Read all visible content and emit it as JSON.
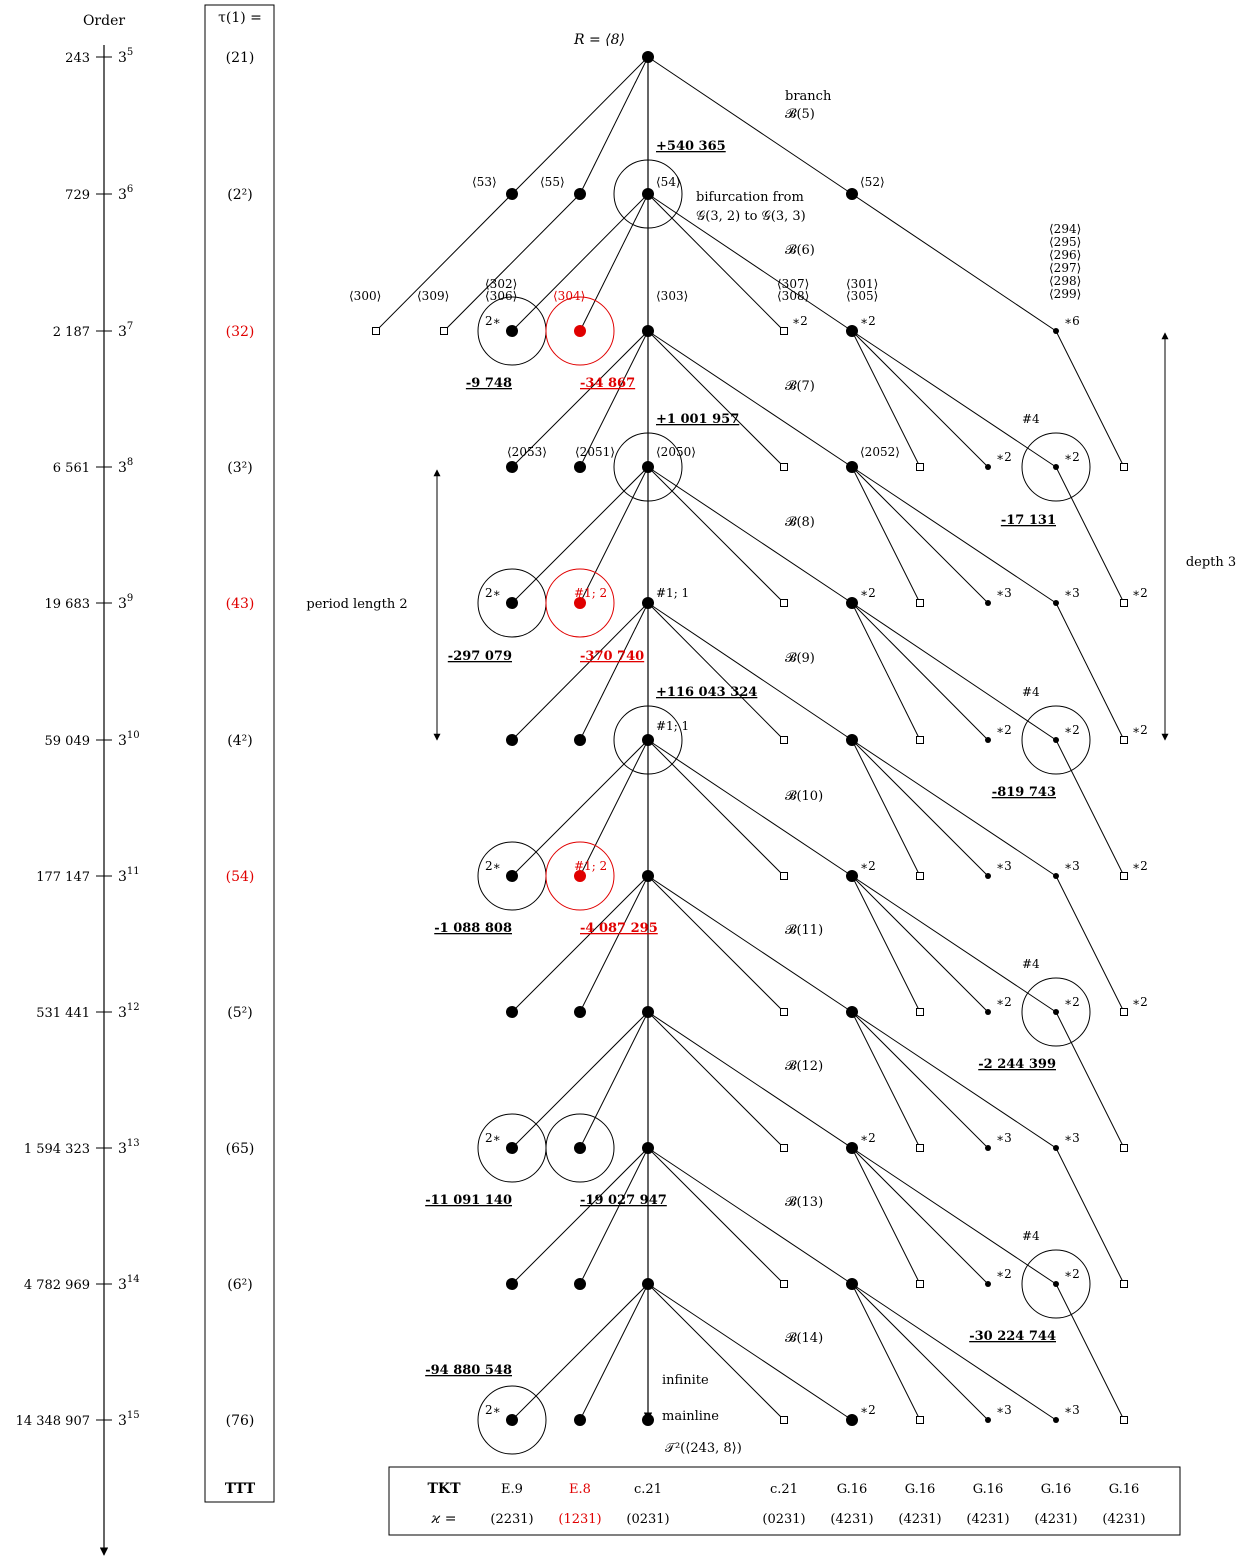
{
  "order_axis": {
    "title": "Order",
    "levels": [
      {
        "order": "243",
        "power": "5",
        "tau": "(21)",
        "tau_red": false
      },
      {
        "order": "729",
        "power": "6",
        "tau": "(2²)",
        "tau_red": false
      },
      {
        "order": "2 187",
        "power": "7",
        "tau": "(32)",
        "tau_red": true
      },
      {
        "order": "6 561",
        "power": "8",
        "tau": "(3²)",
        "tau_red": false
      },
      {
        "order": "19 683",
        "power": "9",
        "tau": "(43)",
        "tau_red": true
      },
      {
        "order": "59 049",
        "power": "10",
        "tau": "(4²)",
        "tau_red": false
      },
      {
        "order": "177 147",
        "power": "11",
        "tau": "(54)",
        "tau_red": true
      },
      {
        "order": "531 441",
        "power": "12",
        "tau": "(5²)",
        "tau_red": false
      },
      {
        "order": "1 594 323",
        "power": "13",
        "tau": "(65)",
        "tau_red": false
      },
      {
        "order": "4 782 969",
        "power": "14",
        "tau": "(6²)",
        "tau_red": false
      },
      {
        "order": "14 348 907",
        "power": "15",
        "tau": "(76)",
        "tau_red": false
      }
    ]
  },
  "tau_column": {
    "header": "τ(1) =",
    "footer": "TTT"
  },
  "root_label": "R = ⟨8⟩",
  "branch_labels": {
    "branch": "branch",
    "b5": "𝓑(5)",
    "b6": "𝓑(6)",
    "b7": "𝓑(7)",
    "b8": "𝓑(8)",
    "b9": "𝓑(9)",
    "b10": "𝓑(10)",
    "b11": "𝓑(11)",
    "b12": "𝓑(12)",
    "b13": "𝓑(13)",
    "b14": "𝓑(14)"
  },
  "bifurcation": {
    "line1": "bifurcation from",
    "line2": "𝒢(3, 2) to 𝒢(3, 3)"
  },
  "node_ids": {
    "n53": "⟨53⟩",
    "n55": "⟨55⟩",
    "n54": "⟨54⟩",
    "n52": "⟨52⟩",
    "n300": "⟨300⟩",
    "n309": "⟨309⟩",
    "n302": "⟨302⟩",
    "n306": "⟨306⟩",
    "n304": "⟨304⟩",
    "n303": "⟨303⟩",
    "n307": "⟨307⟩",
    "n308": "⟨308⟩",
    "n301": "⟨301⟩",
    "n305": "⟨305⟩",
    "n294": "⟨294⟩",
    "n295": "⟨295⟩",
    "n296": "⟨296⟩",
    "n297": "⟨297⟩",
    "n298": "⟨298⟩",
    "n299": "⟨299⟩",
    "n2053": "⟨2053⟩",
    "n2051": "⟨2051⟩",
    "n2050": "⟨2050⟩",
    "n2052": "⟨2052⟩"
  },
  "multiplicities": {
    "two_star": "2∗",
    "star2": "∗2",
    "star3": "∗3",
    "star6": "∗6",
    "hash4": "#4",
    "hash1_1": "#1; 1",
    "hash1_2": "#1; 2"
  },
  "discriminants": {
    "d540365": "+540 365",
    "d9748": "-9 748",
    "d34867": "-34 867",
    "d1001957": "+1 001 957",
    "d17131": "-17 131",
    "d297079": "-297 079",
    "d370740": "-370 740",
    "d116043324": "+116 043 324",
    "d819743": "-819 743",
    "d1088808": "-1 088 808",
    "d4087295": "-4 087 295",
    "d2244399": "-2 244 399",
    "d11091140": "-11 091 140",
    "d19027947": "-19 027 947",
    "d30224744": "-30 224 744",
    "d94880548": "-94 880 548"
  },
  "annotations": {
    "period": "period length 2",
    "depth": "depth 3",
    "infinite": "infinite",
    "mainline": "mainline",
    "tree": "𝒯²(⟨243, 8⟩)"
  },
  "tkt_table": {
    "tkt_label": "TKT",
    "kappa_label": "ϰ =",
    "columns": [
      {
        "tkt": "E.9",
        "kappa": "(2231)",
        "red": false
      },
      {
        "tkt": "E.8",
        "kappa": "(1231)",
        "red": true
      },
      {
        "tkt": "c.21",
        "kappa": "(0231)",
        "red": false
      },
      {
        "tkt": "c.21",
        "kappa": "(0231)",
        "red": false
      },
      {
        "tkt": "G.16",
        "kappa": "(4231)",
        "red": false
      },
      {
        "tkt": "G.16",
        "kappa": "(4231)",
        "red": false
      },
      {
        "tkt": "G.16",
        "kappa": "(4231)",
        "red": false
      },
      {
        "tkt": "G.16",
        "kappa": "(4231)",
        "red": false
      },
      {
        "tkt": "G.16",
        "kappa": "(4231)",
        "red": false
      }
    ]
  },
  "colors": {
    "line": "#000000",
    "highlight": "#e00000"
  }
}
